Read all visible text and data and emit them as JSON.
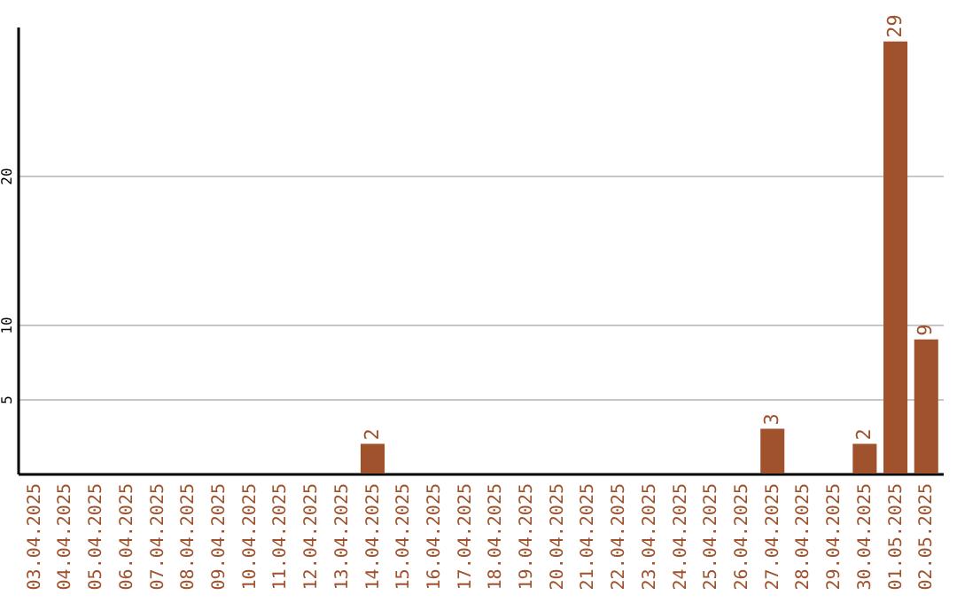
{
  "chart_data": {
    "type": "bar",
    "categories": [
      "03.04.2025",
      "04.04.2025",
      "05.04.2025",
      "06.04.2025",
      "07.04.2025",
      "08.04.2025",
      "09.04.2025",
      "10.04.2025",
      "11.04.2025",
      "12.04.2025",
      "13.04.2025",
      "14.04.2025",
      "15.04.2025",
      "16.04.2025",
      "17.04.2025",
      "18.04.2025",
      "19.04.2025",
      "20.04.2025",
      "21.04.2025",
      "22.04.2025",
      "23.04.2025",
      "24.04.2025",
      "25.04.2025",
      "26.04.2025",
      "27.04.2025",
      "28.04.2025",
      "29.04.2025",
      "30.04.2025",
      "01.05.2025",
      "02.05.2025"
    ],
    "values": [
      0,
      0,
      0,
      0,
      0,
      0,
      0,
      0,
      0,
      0,
      0,
      2,
      0,
      0,
      0,
      0,
      0,
      0,
      0,
      0,
      0,
      0,
      0,
      0,
      3,
      0,
      0,
      2,
      29,
      9
    ],
    "value_labels": [
      null,
      null,
      null,
      null,
      null,
      null,
      null,
      null,
      null,
      null,
      null,
      "2",
      null,
      null,
      null,
      null,
      null,
      null,
      null,
      null,
      null,
      null,
      null,
      null,
      "3",
      null,
      null,
      "2",
      "29",
      "9"
    ],
    "color": "#a0522d",
    "ylim": [
      0,
      30
    ],
    "yticks": [
      5,
      10,
      20
    ],
    "grid": "y"
  }
}
